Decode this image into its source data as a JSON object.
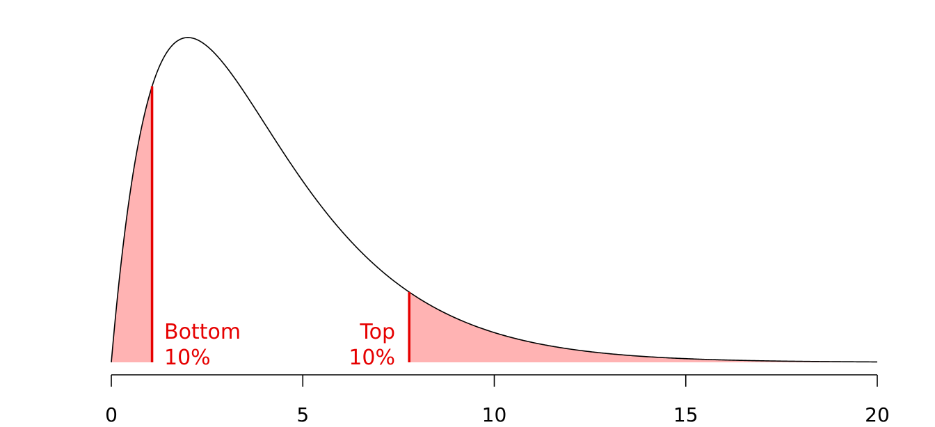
{
  "chart_data": {
    "type": "area",
    "title": "",
    "xlabel": "",
    "ylabel": "",
    "xlim": [
      0,
      20
    ],
    "ylim": [
      0,
      0.154
    ],
    "grid": false,
    "legend": "none",
    "distribution": "chi-squared",
    "degrees_of_freedom": 4,
    "x_ticks": [
      0,
      5,
      10,
      15,
      20
    ],
    "x_tick_labels": [
      "0",
      "5",
      "10",
      "15",
      "20"
    ],
    "bottom_cutoff": 1.064,
    "top_cutoff": 7.779,
    "annotations": [
      {
        "id": "bottom",
        "line1": "Bottom",
        "line2": "10%"
      },
      {
        "id": "top",
        "line1": "Top",
        "line2": "10%"
      }
    ],
    "colors": {
      "curve": "#000000",
      "shade": "#ffb3b3",
      "cutoff_line": "#e60000",
      "annotation_text": "#e60000",
      "axis": "#000000"
    }
  }
}
